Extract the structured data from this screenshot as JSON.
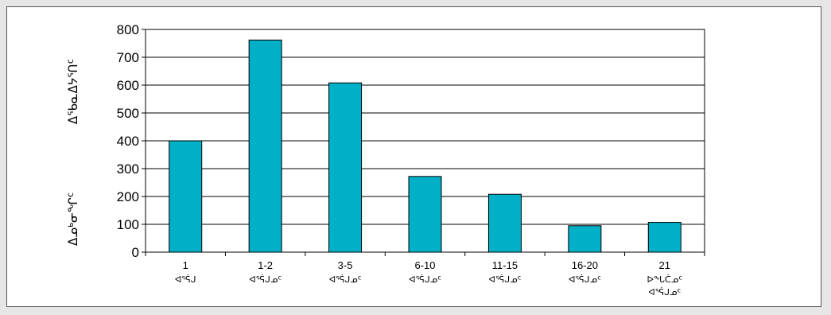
{
  "chart_data": {
    "type": "bar",
    "categories": [
      "1",
      "1-2",
      "3-5",
      "6-10",
      "11-15",
      "16-20",
      "21"
    ],
    "category_sublabels": [
      [
        "ᐊᕐᕌᒍ"
      ],
      [
        "ᐊᕐᕌᒍᓄᑦ"
      ],
      [
        "ᐊᕐᕌᒍᓄᑦ"
      ],
      [
        "ᐊᕐᕌᒍᓄᑦ"
      ],
      [
        "ᐊᕐᕌᒍᓄᑦ"
      ],
      [
        "ᐊᕐᕌᒍᓄᑦ"
      ],
      [
        "ᐅᖓᑖᓄᑦ",
        "ᐊᕐᕌᒍᓄᑦ"
      ]
    ],
    "values": [
      400,
      762,
      608,
      272,
      208,
      95,
      107
    ],
    "ylabel_lines": [
      "ᐃᓄᒃᓂᖏᑦ",
      "ᐃᖃᓇᐃᔭᕐᑎᑦ"
    ],
    "ylim": [
      0,
      800
    ],
    "yticks": [
      0,
      100,
      200,
      300,
      400,
      500,
      600,
      700,
      800
    ],
    "grid": true,
    "colors": {
      "bar": "#00b0c6",
      "bar_edge": "#000000",
      "grid": "#000000"
    }
  }
}
